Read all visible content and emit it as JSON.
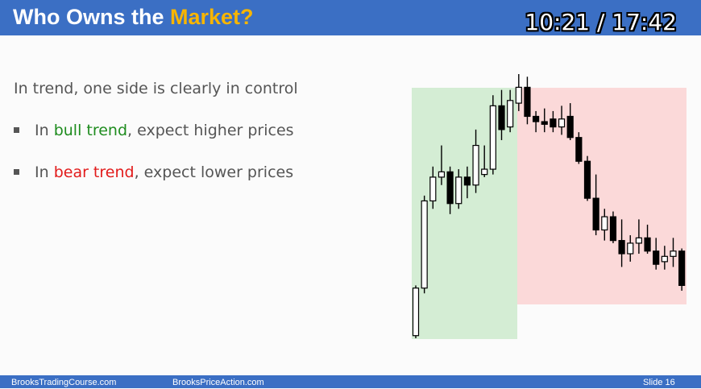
{
  "header": {
    "title_prefix": "Who Owns the ",
    "title_highlight": "Market?",
    "timer": "10:21 / 17:42",
    "bar_color": "#3b6fc4",
    "highlight_color": "#f7b500"
  },
  "content": {
    "headline": "In trend, one side is clearly in control",
    "bullets": [
      {
        "pre": "In ",
        "colored": "bull trend",
        "post": ", expect higher prices",
        "color": "#1e8c1e"
      },
      {
        "pre": "In ",
        "colored": "bear trend",
        "post": ", expect lower prices",
        "color": "#e21b1b"
      }
    ]
  },
  "chart_data": {
    "type": "candlestick",
    "ylim": [
      0,
      100
    ],
    "zones": [
      {
        "name": "bull trend",
        "start_bar": 0,
        "end_bar": 12,
        "color": "#d4edd4"
      },
      {
        "name": "bear trend",
        "start_bar": 13,
        "end_bar": 31,
        "color": "#fbd9d9"
      }
    ],
    "candles": [
      {
        "o": 1,
        "h": 20,
        "l": 0,
        "c": 19
      },
      {
        "o": 19,
        "h": 54,
        "l": 17,
        "c": 52
      },
      {
        "o": 52,
        "h": 65,
        "l": 49,
        "c": 61
      },
      {
        "o": 61,
        "h": 73,
        "l": 58,
        "c": 63
      },
      {
        "o": 63,
        "h": 65,
        "l": 47,
        "c": 51
      },
      {
        "o": 51,
        "h": 64,
        "l": 49,
        "c": 61
      },
      {
        "o": 61,
        "h": 65,
        "l": 53,
        "c": 58
      },
      {
        "o": 58,
        "h": 79,
        "l": 55,
        "c": 73
      },
      {
        "o": 62,
        "h": 73,
        "l": 61,
        "c": 64
      },
      {
        "o": 64,
        "h": 92,
        "l": 62,
        "c": 88
      },
      {
        "o": 88,
        "h": 94,
        "l": 75,
        "c": 79
      },
      {
        "o": 80,
        "h": 94,
        "l": 78,
        "c": 90
      },
      {
        "o": 89,
        "h": 100,
        "l": 86,
        "c": 95
      },
      {
        "o": 95,
        "h": 99,
        "l": 81,
        "c": 84
      },
      {
        "o": 84,
        "h": 86,
        "l": 78,
        "c": 82
      },
      {
        "o": 82,
        "h": 87,
        "l": 78,
        "c": 81
      },
      {
        "o": 83,
        "h": 86,
        "l": 78,
        "c": 80
      },
      {
        "o": 80,
        "h": 88,
        "l": 77,
        "c": 83
      },
      {
        "o": 84,
        "h": 89,
        "l": 75,
        "c": 76
      },
      {
        "o": 76,
        "h": 78,
        "l": 66,
        "c": 67
      },
      {
        "o": 67,
        "h": 69,
        "l": 52,
        "c": 53
      },
      {
        "o": 53,
        "h": 62,
        "l": 39,
        "c": 41
      },
      {
        "o": 41,
        "h": 49,
        "l": 37,
        "c": 46
      },
      {
        "o": 46,
        "h": 48,
        "l": 36,
        "c": 37
      },
      {
        "o": 37,
        "h": 45,
        "l": 27,
        "c": 32
      },
      {
        "o": 32,
        "h": 39,
        "l": 29,
        "c": 36
      },
      {
        "o": 36,
        "h": 45,
        "l": 32,
        "c": 38
      },
      {
        "o": 38,
        "h": 43,
        "l": 32,
        "c": 33
      },
      {
        "o": 33,
        "h": 38,
        "l": 26,
        "c": 28
      },
      {
        "o": 29,
        "h": 35,
        "l": 26,
        "c": 31
      },
      {
        "o": 31,
        "h": 38,
        "l": 27,
        "c": 33
      },
      {
        "o": 33,
        "h": 34,
        "l": 18,
        "c": 20
      }
    ]
  },
  "footer": {
    "left": "BrooksTradingCourse.com",
    "middle": "BrooksPriceAction.com",
    "slide": "Slide  16"
  }
}
